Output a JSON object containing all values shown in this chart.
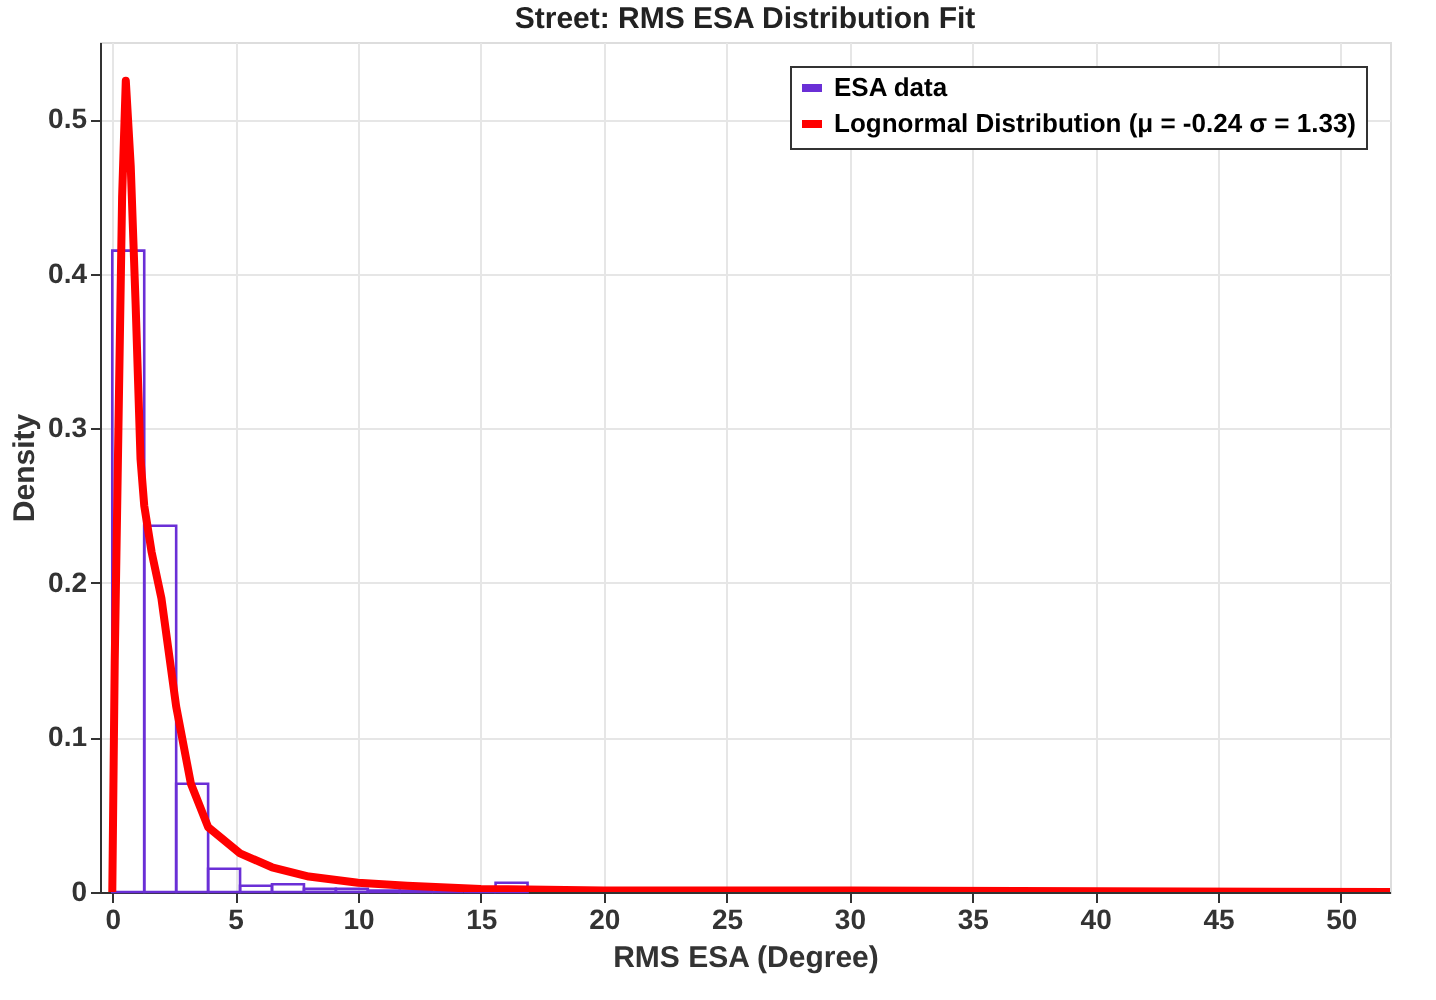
{
  "chart_data": {
    "type": "histogram",
    "title": "Street: RMS ESA Distribution Fit",
    "xlabel": "RMS ESA (Degree)",
    "ylabel": "Density",
    "xlim": [
      -0.5,
      52
    ],
    "xticks": [
      0,
      5,
      10,
      15,
      20,
      25,
      30,
      35,
      40,
      45,
      50
    ],
    "ylim": [
      0,
      0.55
    ],
    "yticks": [
      0,
      0.1,
      0.2,
      0.3,
      0.4,
      0.5
    ],
    "grid": true,
    "legend": "top right",
    "series": [
      {
        "name": "ESA data",
        "color": "#6a2fd6",
        "bins": [
          0,
          1.3,
          2.6,
          3.9,
          5.2,
          6.5,
          7.8,
          9.1,
          10.4,
          11.7,
          13.0,
          14.3,
          15.6,
          16.9
        ],
        "values": [
          0.415,
          0.237,
          0.07,
          0.015,
          0.004,
          0.005,
          0.002,
          0.002,
          0.001,
          0.001,
          0,
          0,
          0.006
        ]
      },
      {
        "name": "Lognormal Distribution (μ = -0.24 σ = 1.33)",
        "type": "line",
        "color": "#ff0000",
        "x": [
          0,
          0.1,
          0.25,
          0.4,
          0.55,
          0.75,
          0.95,
          1.15,
          1.3,
          1.6,
          2.0,
          2.6,
          3.2,
          3.9,
          5.2,
          6.5,
          8,
          10,
          12,
          15,
          20,
          30,
          52
        ],
        "values": [
          0,
          0.15,
          0.3,
          0.45,
          0.525,
          0.47,
          0.38,
          0.28,
          0.25,
          0.22,
          0.19,
          0.12,
          0.07,
          0.042,
          0.025,
          0.016,
          0.01,
          0.006,
          0.004,
          0.002,
          0.001,
          0.001,
          0
        ]
      }
    ]
  }
}
